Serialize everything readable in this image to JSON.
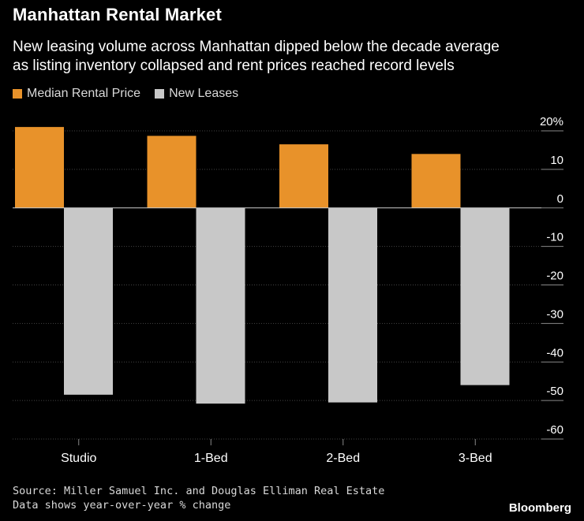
{
  "header": {
    "title": "Manhattan Rental Market",
    "subtitle_line1": "New leasing volume across Manhattan dipped below the decade average",
    "subtitle_line2": "as listing inventory collapsed and rent prices reached record levels"
  },
  "legend": {
    "series1": "Median Rental Price",
    "series2": "New Leases"
  },
  "footer": {
    "source": "Source: Miller Samuel Inc. and Douglas Elliman Real Estate",
    "note": "Data shows year-over-year % change",
    "brand": "Bloomberg"
  },
  "colors": {
    "series1": "#e8922a",
    "series2": "#c8c8c8",
    "grid": "#444444",
    "zero": "#cccccc"
  },
  "chart_data": {
    "type": "bar",
    "title": "Manhattan Rental Market",
    "categories": [
      "Studio",
      "1-Bed",
      "2-Bed",
      "3-Bed"
    ],
    "series": [
      {
        "name": "Median Rental Price",
        "values": [
          21,
          18.7,
          16.5,
          14
        ]
      },
      {
        "name": "New Leases",
        "values": [
          -48.5,
          -50.8,
          -50.5,
          -46
        ]
      }
    ],
    "ylim": [
      -60,
      20
    ],
    "yticks": [
      20,
      10,
      0,
      -10,
      -20,
      -30,
      -40,
      -50,
      -60
    ],
    "ytick_labels": [
      "20%",
      "10",
      "0",
      "-10",
      "-20",
      "-30",
      "-40",
      "-50",
      "-60"
    ],
    "xlabel": "",
    "ylabel": "",
    "grid": true
  }
}
